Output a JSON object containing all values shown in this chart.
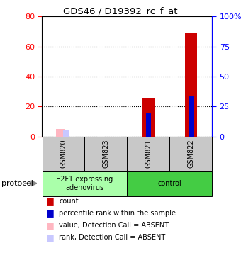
{
  "title": "GDS46 / D19392_rc_f_at",
  "samples": [
    "GSM820",
    "GSM823",
    "GSM821",
    "GSM822"
  ],
  "count_values": [
    null,
    null,
    26,
    69
  ],
  "rank_values": [
    null,
    null,
    20,
    33.5
  ],
  "count_absent": [
    5,
    null,
    null,
    null
  ],
  "rank_absent": [
    6,
    null,
    null,
    null
  ],
  "ylim_left": [
    0,
    80
  ],
  "ylim_right": [
    0,
    100
  ],
  "yticks_left": [
    0,
    20,
    40,
    60,
    80
  ],
  "yticks_right": [
    0,
    25,
    50,
    75,
    100
  ],
  "ytick_labels_right": [
    "0",
    "25",
    "50",
    "75",
    "100%"
  ],
  "count_color": "#CC0000",
  "rank_color": "#0000CC",
  "count_absent_color": "#FFB6C1",
  "rank_absent_color": "#C8C8FF",
  "sample_box_color": "#C8C8C8",
  "group1_color": "#AAFFAA",
  "group2_color": "#44CC44",
  "legend_items": [
    {
      "label": "count",
      "color": "#CC0000"
    },
    {
      "label": "percentile rank within the sample",
      "color": "#0000CC"
    },
    {
      "label": "value, Detection Call = ABSENT",
      "color": "#FFB6C1"
    },
    {
      "label": "rank, Detection Call = ABSENT",
      "color": "#C8C8FF"
    }
  ]
}
